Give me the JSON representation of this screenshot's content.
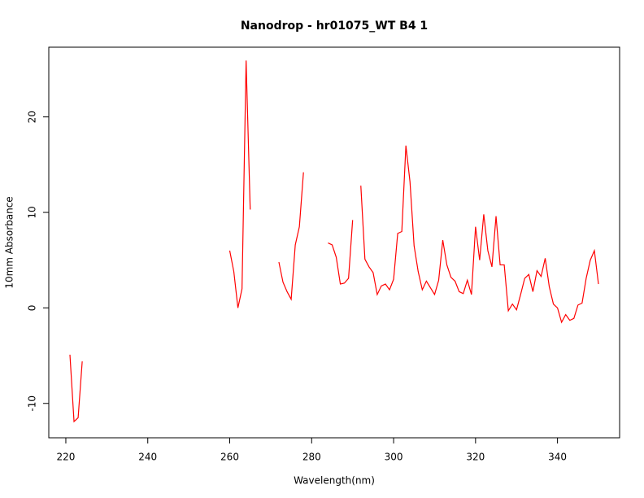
{
  "chart_data": {
    "type": "line",
    "title": "Nanodrop - hr01075_WT B4 1",
    "xlabel": "Wavelength(nm)",
    "ylabel": "10mm Absorbance",
    "x": [
      221,
      222,
      223,
      224,
      225,
      226,
      227,
      228,
      229,
      230,
      231,
      232,
      233,
      234,
      235,
      236,
      237,
      238,
      239,
      240,
      241,
      242,
      243,
      244,
      245,
      246,
      247,
      248,
      249,
      250,
      251,
      252,
      253,
      254,
      255,
      256,
      257,
      258,
      259,
      260,
      261,
      262,
      263,
      264,
      265,
      266,
      267,
      268,
      269,
      270,
      271,
      272,
      273,
      274,
      275,
      276,
      277,
      278,
      279,
      280,
      281,
      282,
      283,
      284,
      285,
      286,
      287,
      288,
      289,
      290,
      291,
      292,
      293,
      294,
      295,
      296,
      297,
      298,
      299,
      300,
      301,
      302,
      303,
      304,
      305,
      306,
      307,
      308,
      309,
      310,
      311,
      312,
      313,
      314,
      315,
      316,
      317,
      318,
      319,
      320,
      321,
      322,
      323,
      324,
      325,
      326,
      327,
      328,
      329,
      330,
      331,
      332,
      333,
      334,
      335,
      336,
      337,
      338,
      339,
      340,
      341,
      342,
      343,
      344,
      345,
      346,
      347,
      348,
      349,
      350
    ],
    "series": [
      {
        "name": "absorbance",
        "color": "#ff0000",
        "values": [
          -4.9,
          -11.9,
          -11.5,
          -5.6,
          null,
          null,
          null,
          null,
          null,
          null,
          null,
          null,
          null,
          null,
          null,
          null,
          null,
          null,
          null,
          null,
          null,
          null,
          null,
          null,
          null,
          null,
          null,
          null,
          null,
          null,
          null,
          null,
          null,
          null,
          null,
          null,
          null,
          null,
          null,
          6.0,
          3.8,
          0.0,
          2.0,
          25.9,
          10.3,
          null,
          null,
          null,
          null,
          null,
          null,
          4.8,
          2.7,
          1.7,
          0.9,
          6.6,
          8.5,
          14.2,
          null,
          null,
          null,
          null,
          null,
          6.8,
          6.6,
          5.3,
          2.5,
          2.6,
          3.1,
          9.2,
          null,
          12.8,
          5.1,
          4.3,
          3.7,
          1.4,
          2.3,
          2.5,
          1.9,
          3.0,
          7.8,
          8.0,
          17.0,
          13.2,
          6.5,
          3.8,
          1.9,
          2.8,
          2.1,
          1.4,
          2.9,
          7.1,
          4.5,
          3.2,
          2.8,
          1.7,
          1.5,
          2.9,
          1.4,
          8.5,
          5.0,
          9.8,
          6.0,
          4.3,
          9.6,
          4.5,
          4.5,
          -0.3,
          0.4,
          -0.2,
          1.4,
          3.1,
          3.5,
          1.7,
          3.9,
          3.3,
          5.2,
          2.2,
          0.4,
          0.0,
          -1.5,
          -0.7,
          -1.3,
          -1.1,
          0.3,
          0.5,
          3.1,
          5.0,
          6.0,
          2.5
        ]
      }
    ],
    "xlim": [
      215.84,
      355.16
    ],
    "ylim": [
      -13.6,
      27.3
    ],
    "xticks": [
      220,
      240,
      260,
      280,
      300,
      320,
      340
    ],
    "yticks": [
      -10,
      0,
      10,
      20
    ]
  }
}
